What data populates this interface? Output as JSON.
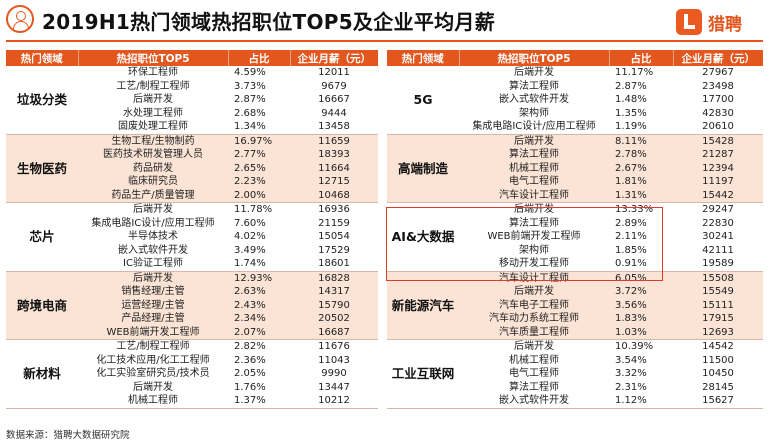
{
  "header": {
    "title": "2019H1热门领域热招职位TOP5及企业平均月薪",
    "logo_text": "猎聘"
  },
  "columns": {
    "field": "热门领域",
    "position": "热招职位TOP5",
    "share": "占比",
    "salary": "企业月薪（元）"
  },
  "source": "数据来源：猎聘大数据研究院",
  "colors": {
    "accent": "#e2571e",
    "band": "#fbe4d5",
    "highlight_box": "#e03a2e"
  },
  "chart_data": {
    "type": "table",
    "title": "2019H1热门领域热招职位TOP5及企业平均月薪",
    "left": [
      {
        "field": "垃圾分类",
        "rows": [
          {
            "position": "环保工程师",
            "share": "4.59%",
            "salary": "12011"
          },
          {
            "position": "工艺/制程工程师",
            "share": "3.73%",
            "salary": "9679"
          },
          {
            "position": "后端开发",
            "share": "2.87%",
            "salary": "16667"
          },
          {
            "position": "水处理工程师",
            "share": "2.68%",
            "salary": "9444"
          },
          {
            "position": "固废处理工程师",
            "share": "1.34%",
            "salary": "13458"
          }
        ]
      },
      {
        "field": "生物医药",
        "rows": [
          {
            "position": "生物工程/生物制药",
            "share": "16.97%",
            "salary": "11659"
          },
          {
            "position": "医药技术研发管理人员",
            "share": "2.77%",
            "salary": "18393"
          },
          {
            "position": "药品研发",
            "share": "2.65%",
            "salary": "11664"
          },
          {
            "position": "临床研究员",
            "share": "2.23%",
            "salary": "12715"
          },
          {
            "position": "药品生产/质量管理",
            "share": "2.00%",
            "salary": "10468"
          }
        ]
      },
      {
        "field": "芯片",
        "rows": [
          {
            "position": "后端开发",
            "share": "11.78%",
            "salary": "16936"
          },
          {
            "position": "集成电路IC设计/应用工程师",
            "share": "7.60%",
            "salary": "21159"
          },
          {
            "position": "半导体技术",
            "share": "4.02%",
            "salary": "15054"
          },
          {
            "position": "嵌入式软件开发",
            "share": "3.49%",
            "salary": "17529"
          },
          {
            "position": "IC验证工程师",
            "share": "1.74%",
            "salary": "18601"
          }
        ]
      },
      {
        "field": "跨境电商",
        "rows": [
          {
            "position": "后端开发",
            "share": "12.93%",
            "salary": "16828"
          },
          {
            "position": "销售经理/主管",
            "share": "2.63%",
            "salary": "14317"
          },
          {
            "position": "运营经理/主管",
            "share": "2.43%",
            "salary": "15790"
          },
          {
            "position": "产品经理/主管",
            "share": "2.34%",
            "salary": "20502"
          },
          {
            "position": "WEB前端开发工程师",
            "share": "2.07%",
            "salary": "16687"
          }
        ]
      },
      {
        "field": "新材料",
        "rows": [
          {
            "position": "工艺/制程工程师",
            "share": "2.82%",
            "salary": "11676"
          },
          {
            "position": "化工技术应用/化工工程师",
            "share": "2.36%",
            "salary": "11043"
          },
          {
            "position": "化工实验室研究员/技术员",
            "share": "2.05%",
            "salary": "9990"
          },
          {
            "position": "后端开发",
            "share": "1.76%",
            "salary": "13447"
          },
          {
            "position": "机械工程师",
            "share": "1.37%",
            "salary": "10212"
          }
        ]
      }
    ],
    "right": [
      {
        "field": "5G",
        "rows": [
          {
            "position": "后端开发",
            "share": "11.17%",
            "salary": "27967"
          },
          {
            "position": "算法工程师",
            "share": "2.87%",
            "salary": "23498"
          },
          {
            "position": "嵌入式软件开发",
            "share": "1.48%",
            "salary": "17700"
          },
          {
            "position": "架构师",
            "share": "1.35%",
            "salary": "42830"
          },
          {
            "position": "集成电路IC设计/应用工程师",
            "share": "1.19%",
            "salary": "20610"
          }
        ]
      },
      {
        "field": "高端制造",
        "rows": [
          {
            "position": "后端开发",
            "share": "8.11%",
            "salary": "15428"
          },
          {
            "position": "算法工程师",
            "share": "2.78%",
            "salary": "21287"
          },
          {
            "position": "机械工程师",
            "share": "2.67%",
            "salary": "12394"
          },
          {
            "position": "电气工程师",
            "share": "1.81%",
            "salary": "11197"
          },
          {
            "position": "汽车设计工程师",
            "share": "1.31%",
            "salary": "15442"
          }
        ]
      },
      {
        "field": "AI&大数据",
        "rows": [
          {
            "position": "后端开发",
            "share": "13.33%",
            "salary": "29247"
          },
          {
            "position": "算法工程师",
            "share": "2.89%",
            "salary": "22830"
          },
          {
            "position": "WEB前端开发工程师",
            "share": "2.11%",
            "salary": "30241"
          },
          {
            "position": "架构师",
            "share": "1.85%",
            "salary": "42111"
          },
          {
            "position": "移动开发工程师",
            "share": "0.91%",
            "salary": "19589"
          }
        ]
      },
      {
        "field": "新能源汽车",
        "rows": [
          {
            "position": "汽车设计工程师",
            "share": "6.05%",
            "salary": "15508"
          },
          {
            "position": "后端开发",
            "share": "3.72%",
            "salary": "15549"
          },
          {
            "position": "汽车电子工程师",
            "share": "3.56%",
            "salary": "15111"
          },
          {
            "position": "汽车动力系统工程师",
            "share": "1.83%",
            "salary": "17915"
          },
          {
            "position": "汽车质量工程师",
            "share": "1.03%",
            "salary": "12693"
          }
        ]
      },
      {
        "field": "工业互联网",
        "rows": [
          {
            "position": "后端开发",
            "share": "10.39%",
            "salary": "14542"
          },
          {
            "position": "机械工程师",
            "share": "3.54%",
            "salary": "11500"
          },
          {
            "position": "电气工程师",
            "share": "3.32%",
            "salary": "10450"
          },
          {
            "position": "算法工程师",
            "share": "2.31%",
            "salary": "28145"
          },
          {
            "position": "嵌入式软件开发",
            "share": "1.12%",
            "salary": "15627"
          }
        ]
      }
    ]
  }
}
